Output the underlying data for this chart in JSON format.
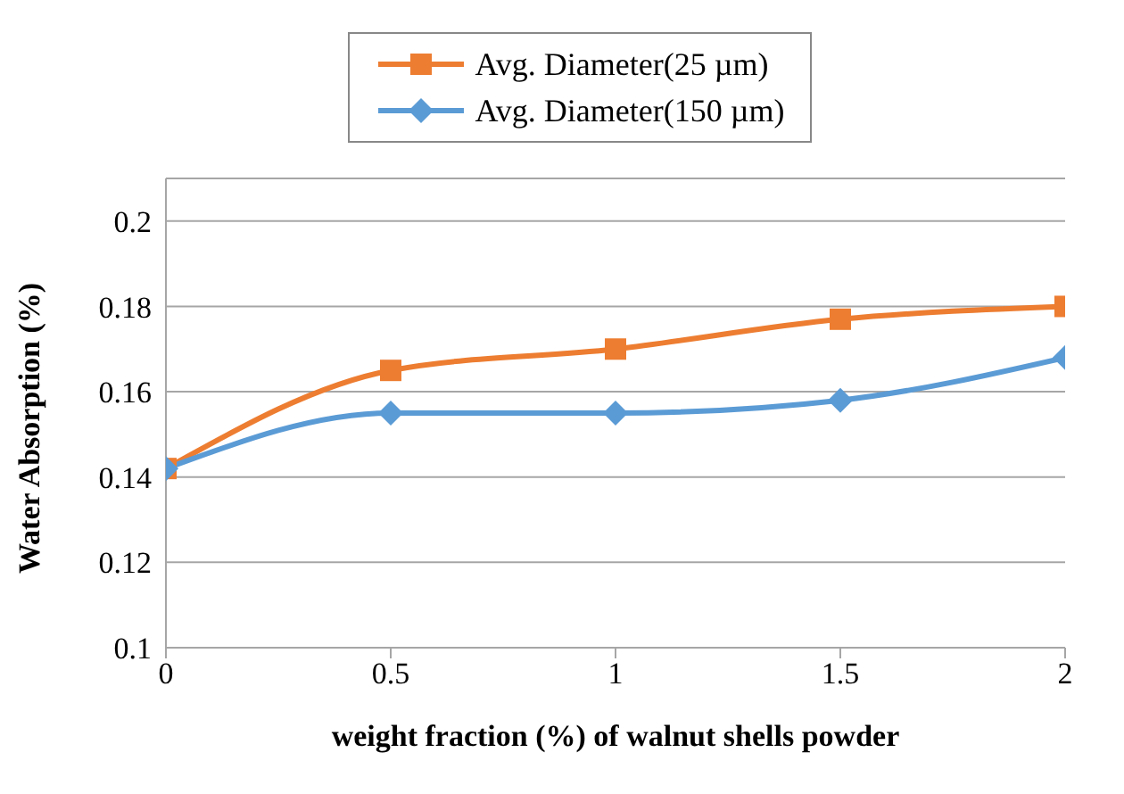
{
  "chart_data": {
    "type": "line",
    "xlabel": "weight fraction (%) of walnut shells powder",
    "ylabel": "Water Absorption (%)",
    "x": [
      0,
      0.5,
      1,
      1.5,
      2
    ],
    "series": [
      {
        "name": "Avg. Diameter(25 µm)",
        "color": "#ed7d31",
        "marker": "square",
        "values": [
          0.142,
          0.165,
          0.17,
          0.177,
          0.18
        ]
      },
      {
        "name": "Avg. Diameter(150 µm)",
        "color": "#5b9bd5",
        "marker": "diamond",
        "values": [
          0.142,
          0.155,
          0.155,
          0.158,
          0.168
        ]
      }
    ],
    "xlim": [
      0,
      2
    ],
    "xticks": [
      0,
      0.5,
      1,
      1.5,
      2
    ],
    "ylim": [
      0.1,
      0.21
    ],
    "yticks": [
      0.1,
      0.12,
      0.14,
      0.16,
      0.18,
      0.2
    ],
    "grid": "y",
    "legend": "top"
  }
}
